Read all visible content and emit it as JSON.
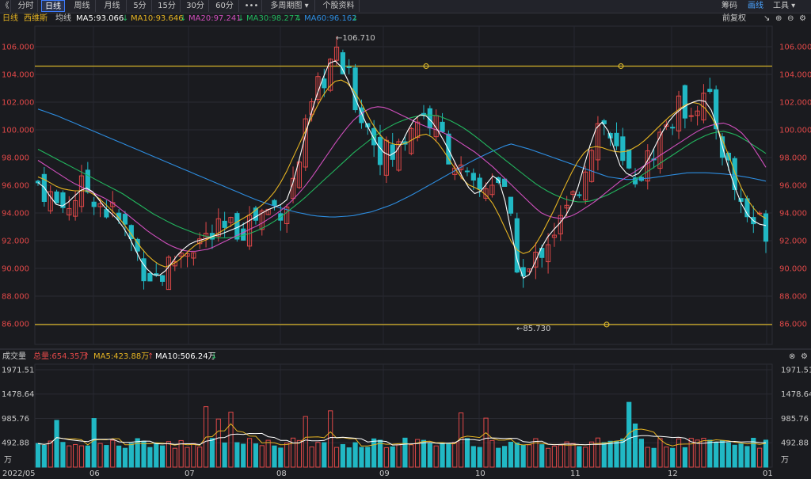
{
  "toolbar": {
    "collapse_icon": "《",
    "periods": [
      "分时",
      "日线",
      "周线",
      "月线",
      "5分",
      "15分",
      "30分",
      "60分",
      "•••",
      "多周期图 ▾",
      "个股资料"
    ],
    "active_period": "日线",
    "right_items": [
      "筹码",
      "画线",
      "工具 ▾"
    ],
    "active_right": "画线"
  },
  "ma_row": {
    "period": "日线",
    "stock_name": "西维斯",
    "avg_line": "均线",
    "ma5": "MA5:93.066",
    "ma10": "MA10:93.646",
    "ma20": "MA20:97.241",
    "ma30": "MA30:98.277",
    "ma60": "MA60:96.162",
    "adjust": "前复权"
  },
  "vol_row": {
    "title": "成交量",
    "total": "总量:654.35万",
    "ma5": "MA5:423.88万",
    "ma10": "MA10:506.24万"
  },
  "colors": {
    "up": "#e04848",
    "down": "#21b8c4",
    "ma5": "#ffffff",
    "ma10": "#e6b422",
    "ma20": "#d04fbd",
    "ma30": "#22b65e",
    "ma60": "#2d8de0",
    "hline": "#d4b22a"
  },
  "price_axis": {
    "labels": [
      "106.000",
      "104.000",
      "102.000",
      "100.000",
      "98.000",
      "96.000",
      "94.000",
      "92.000",
      "90.000",
      "88.000",
      "86.000"
    ]
  },
  "volume_axis": {
    "labels": [
      "1971.51",
      "1478.64",
      "985.76",
      "492.88"
    ],
    "unit": "万"
  },
  "x_axis": {
    "labels": [
      "2022/05",
      "06",
      "07",
      "08",
      "09",
      "10",
      "11",
      "12",
      "01"
    ]
  },
  "annotations": {
    "high": "106.710",
    "low": "85.730"
  },
  "chart_data": {
    "type": "candlestick",
    "title": "西维斯",
    "ylim": [
      85.0,
      107.0
    ],
    "hlines": [
      104.6,
      85.95
    ],
    "ma_lines": {
      "ma5": [
        96.2,
        95.8,
        95.0,
        94.4,
        94.6,
        95.1,
        95.6,
        95.8,
        95.5,
        94.8,
        94.2,
        93.8,
        93.2,
        92.4,
        91.4,
        90.4,
        89.8,
        89.4,
        89.6,
        90.2,
        90.9,
        91.4,
        91.8,
        92.0,
        92.1,
        92.3,
        92.4,
        92.6,
        92.8,
        93.0,
        93.3,
        93.6,
        93.9,
        94.2,
        94.4,
        94.6,
        95.0,
        96.5,
        98.5,
        100.5,
        102.2,
        103.6,
        104.8,
        105.0,
        104.4,
        103.2,
        102.0,
        100.8,
        99.8,
        98.9,
        98.3,
        98.1,
        98.6,
        99.6,
        100.6,
        101.1,
        101.0,
        100.5,
        99.7,
        98.8,
        97.8,
        96.8,
        95.9,
        95.4,
        95.6,
        96.3,
        96.9,
        95.8,
        93.3,
        90.8,
        89.3,
        89.6,
        90.8,
        91.9,
        92.6,
        93.1,
        93.7,
        94.6,
        96.0,
        97.8,
        99.5,
        100.7,
        100.3,
        98.8,
        97.4,
        96.8,
        96.6,
        97.0,
        97.8,
        98.8,
        99.8,
        100.6,
        101.2,
        101.6,
        101.9,
        102.1,
        102.2,
        101.6,
        100.2,
        98.3,
        96.6,
        95.2,
        94.1,
        93.5,
        93.2,
        93.1
      ],
      "ma10": [
        96.6,
        96.4,
        96.1,
        95.8,
        95.7,
        95.6,
        95.6,
        95.6,
        95.3,
        94.9,
        94.4,
        93.9,
        93.3,
        92.6,
        91.9,
        91.2,
        90.7,
        90.3,
        90.1,
        90.3,
        90.6,
        91.1,
        91.6,
        91.9,
        92.1,
        92.4,
        92.7,
        93.0,
        93.3,
        93.6,
        93.9,
        94.3,
        94.7,
        95.2,
        95.9,
        96.8,
        97.9,
        99.0,
        100.1,
        101.2,
        102.2,
        103.0,
        103.5,
        103.6,
        103.3,
        102.6,
        101.7,
        100.7,
        99.9,
        99.3,
        99.0,
        98.9,
        99.0,
        99.3,
        99.6,
        99.7,
        99.4,
        98.8,
        98.0,
        97.2,
        96.5,
        96.0,
        95.8,
        95.5,
        95.0,
        94.1,
        93.0,
        91.9,
        91.2,
        91.0,
        91.4,
        92.2,
        93.2,
        94.2,
        95.3,
        96.4,
        97.4,
        98.2,
        98.7,
        98.8,
        98.7,
        98.5,
        98.4,
        98.4,
        98.6,
        98.9,
        99.3,
        99.8,
        100.3,
        100.8,
        101.2,
        101.6,
        101.9,
        102.0,
        101.8,
        101.2,
        100.3,
        99.1,
        97.8,
        96.4,
        95.3,
        94.5,
        93.9,
        93.6
      ],
      "ma20": [
        97.8,
        97.4,
        97.0,
        96.6,
        96.2,
        95.9,
        95.6,
        95.3,
        95.0,
        94.6,
        94.1,
        93.6,
        93.1,
        92.6,
        92.2,
        91.8,
        91.5,
        91.3,
        91.2,
        91.3,
        91.4,
        91.7,
        92.0,
        92.3,
        92.6,
        92.9,
        93.2,
        93.6,
        94.0,
        94.5,
        95.1,
        95.8,
        96.6,
        97.5,
        98.4,
        99.3,
        100.1,
        100.8,
        101.3,
        101.6,
        101.7,
        101.5,
        101.2,
        100.9,
        100.6,
        100.3,
        100.1,
        99.9,
        99.6,
        99.2,
        98.8,
        98.4,
        97.9,
        97.4,
        96.8,
        96.2,
        95.6,
        95.0,
        94.4,
        93.9,
        93.7,
        93.6,
        93.7,
        94.0,
        94.4,
        94.8,
        95.3,
        95.8,
        96.3,
        96.7,
        97.1,
        97.5,
        97.9,
        98.3,
        98.7,
        99.1,
        99.5,
        99.9,
        100.2,
        100.4,
        100.5,
        100.3,
        99.9,
        99.2,
        98.3,
        97.3
      ],
      "ma30": [
        98.6,
        98.2,
        97.8,
        97.4,
        97.0,
        96.6,
        96.2,
        95.8,
        95.4,
        94.9,
        94.4,
        93.9,
        93.5,
        93.1,
        92.8,
        92.5,
        92.3,
        92.2,
        92.2,
        92.3,
        92.5,
        92.8,
        93.2,
        93.7,
        94.3,
        94.9,
        95.6,
        96.3,
        97.0,
        97.7,
        98.4,
        99.0,
        99.6,
        100.1,
        100.5,
        100.8,
        101.0,
        101.1,
        101.0,
        100.7,
        100.3,
        99.8,
        99.2,
        98.6,
        98.0,
        97.4,
        96.8,
        96.2,
        95.7,
        95.3,
        95.0,
        94.8,
        94.8,
        95.0,
        95.3,
        95.7,
        96.1,
        96.6,
        97.1,
        97.6,
        98.1,
        98.6,
        99.1,
        99.5,
        99.8,
        99.9,
        99.7,
        99.3,
        98.8,
        98.3
      ],
      "ma60": [
        101.5,
        101.0,
        100.4,
        99.8,
        99.2,
        98.6,
        98.0,
        97.4,
        96.8,
        96.2,
        95.6,
        95.0,
        94.5,
        94.1,
        93.8,
        93.7,
        93.8,
        94.1,
        94.6,
        95.3,
        96.1,
        96.9,
        97.7,
        98.4,
        99.0,
        98.6,
        98.1,
        97.6,
        97.1,
        96.6,
        96.4,
        96.5,
        96.7,
        96.9,
        96.9,
        96.8,
        96.6,
        96.3
      ]
    },
    "volume_scale_max": 1971.51
  }
}
